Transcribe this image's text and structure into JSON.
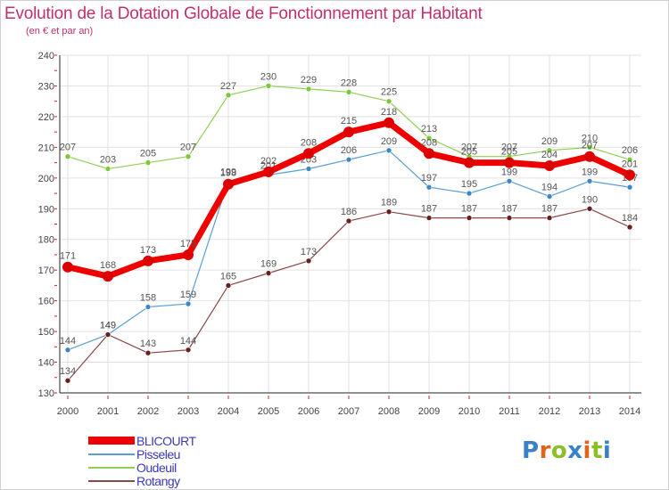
{
  "title": "Evolution de la Dotation Globale de Fonctionnement par Habitant",
  "subtitle": "(en € et par an)",
  "logo_letters": [
    {
      "ch": "P",
      "color": "#3a82c8"
    },
    {
      "ch": "r",
      "color": "#e0641e"
    },
    {
      "ch": "o",
      "color": "#8cbe28"
    },
    {
      "ch": "x",
      "color": "#3a82c8"
    },
    {
      "ch": "i",
      "color": "#e0641e"
    },
    {
      "ch": "t",
      "color": "#8cbe28"
    },
    {
      "ch": "i",
      "color": "#3a82c8"
    }
  ],
  "chart_data": {
    "type": "line",
    "x": [
      "2000",
      "2001",
      "2002",
      "2003",
      "2004",
      "2005",
      "2006",
      "2007",
      "2008",
      "2009",
      "2010",
      "2011",
      "2012",
      "2013",
      "2014"
    ],
    "ylim": [
      130,
      240
    ],
    "yticks": [
      130,
      140,
      150,
      160,
      170,
      180,
      190,
      200,
      210,
      220,
      230,
      240
    ],
    "grid": true,
    "legend_position": "bottom-left",
    "series": [
      {
        "name": "Oudeuil",
        "color": "#8ecf54",
        "dot": "#7cc83c",
        "width": 1.2,
        "radius": 3,
        "values": [
          207,
          203,
          205,
          207,
          227,
          230,
          229,
          228,
          225,
          213,
          207,
          207,
          209,
          210,
          206
        ]
      },
      {
        "name": "Pisseleu",
        "color": "#5a9ed2",
        "dot": "#3f86c6",
        "width": 1.2,
        "radius": 3,
        "values": [
          144,
          149,
          158,
          159,
          199,
          201,
          203,
          206,
          209,
          197,
          195,
          199,
          194,
          199,
          197
        ]
      },
      {
        "name": "Rotangy",
        "color": "#8a4848",
        "dot": "#6b1e1e",
        "width": 1.2,
        "radius": 3,
        "values": [
          134,
          149,
          143,
          144,
          165,
          169,
          173,
          186,
          189,
          187,
          187,
          187,
          187,
          190,
          184
        ]
      },
      {
        "name": "BLICOURT",
        "color": "#ee0000",
        "dot": "#dd0000",
        "width": 7,
        "radius": 6,
        "values": [
          171,
          168,
          173,
          175,
          198,
          202,
          208,
          215,
          218,
          208,
          205,
          205,
          204,
          207,
          201
        ]
      }
    ],
    "legend_order": [
      "BLICOURT",
      "Pisseleu",
      "Oudeuil",
      "Rotangy"
    ]
  }
}
